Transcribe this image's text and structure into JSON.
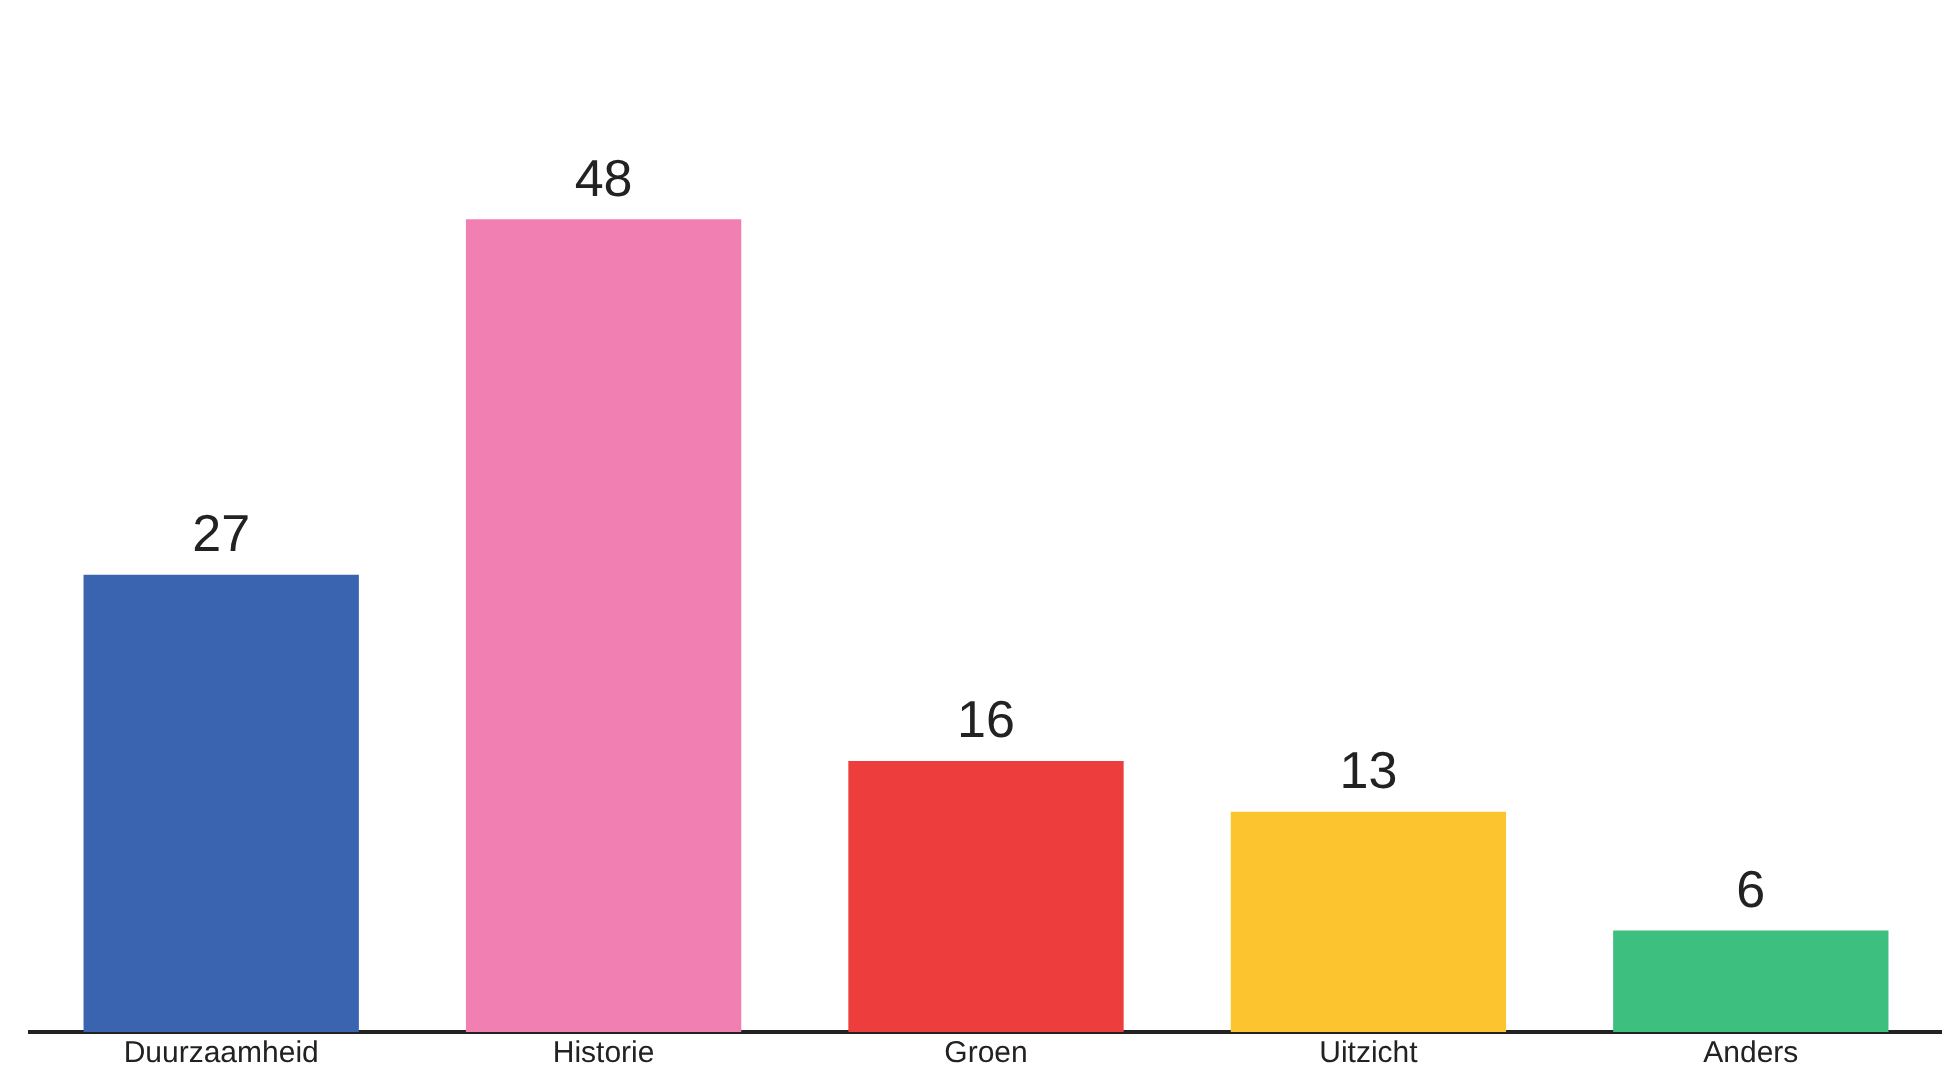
{
  "chart_data": {
    "type": "bar",
    "categories": [
      "Duurzaamheid",
      "Historie",
      "Groen",
      "Uitzicht",
      "Anders"
    ],
    "values": [
      27,
      48,
      16,
      13,
      6
    ],
    "colors": [
      "#3a63b0",
      "#f17fb1",
      "#ee3d3d",
      "#fcc530",
      "#3dbf7f"
    ],
    "data_labels": true,
    "tick_labels": "x",
    "grid": false,
    "legend": false
  }
}
